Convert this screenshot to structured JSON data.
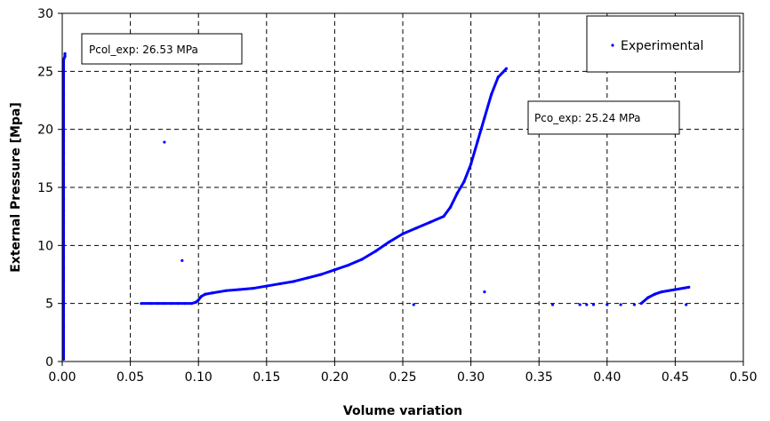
{
  "chart_data": {
    "type": "scatter",
    "xlabel": "Volume variation",
    "ylabel": "External Pressure [Mpa]",
    "xlim": [
      0,
      0.5
    ],
    "ylim": [
      0,
      30
    ],
    "xticks": [
      "0.00",
      "0.05",
      "0.10",
      "0.15",
      "0.20",
      "0.25",
      "0.30",
      "0.35",
      "0.40",
      "0.45",
      "0.50"
    ],
    "yticks": [
      "0",
      "5",
      "10",
      "15",
      "20",
      "25",
      "30"
    ],
    "grid": true,
    "legend": {
      "placement": "top-right",
      "entries": [
        "Experimental"
      ]
    },
    "annotations": [
      {
        "text": "Pcol_exp:  26.53 MPa",
        "x": 0.0,
        "y": 26.53
      },
      {
        "text": "Pco_exp:  25.24 MPa",
        "x": 0.326,
        "y": 25.24
      }
    ],
    "series": [
      {
        "name": "Experimental",
        "color": "#0000ff",
        "x": [
          0.001,
          0.001,
          0.001,
          0.001,
          0.001,
          0.001,
          0.001,
          0.001,
          0.001,
          0.001,
          0.001,
          0.001,
          0.001,
          0.001,
          0.001,
          0.001,
          0.001,
          0.001,
          0.001,
          0.001,
          0.001,
          0.001,
          0.001,
          0.001,
          0.001,
          0.001,
          0.001,
          0.002,
          0.002,
          0.001,
          0.058,
          0.065,
          0.07,
          0.075,
          0.08,
          0.085,
          0.09,
          0.095,
          0.098,
          0.1,
          0.102,
          0.105,
          0.11,
          0.12,
          0.13,
          0.14,
          0.15,
          0.16,
          0.17,
          0.18,
          0.19,
          0.2,
          0.21,
          0.22,
          0.23,
          0.24,
          0.25,
          0.26,
          0.27,
          0.28,
          0.285,
          0.29,
          0.295,
          0.3,
          0.305,
          0.31,
          0.315,
          0.32,
          0.325,
          0.326,
          0.075,
          0.088,
          0.258,
          0.31,
          0.36,
          0.38,
          0.385,
          0.39,
          0.4,
          0.41,
          0.42,
          0.425,
          0.43,
          0.435,
          0.44,
          0.45,
          0.46,
          0.458
        ],
        "y": [
          0.2,
          1,
          2,
          3,
          4,
          5,
          6,
          7,
          8,
          9,
          10,
          11,
          12,
          13,
          14,
          15,
          16,
          17,
          18,
          19,
          20,
          21,
          22,
          23,
          24,
          25,
          26,
          26.3,
          26.53,
          5,
          5,
          5,
          5,
          5,
          5,
          5,
          5,
          5,
          5.1,
          5.3,
          5.6,
          5.8,
          5.9,
          6.1,
          6.2,
          6.3,
          6.5,
          6.7,
          6.9,
          7.2,
          7.5,
          7.9,
          8.3,
          8.8,
          9.5,
          10.3,
          11,
          11.5,
          12,
          12.5,
          13.3,
          14.5,
          15.5,
          17,
          19,
          21,
          23,
          24.5,
          25.1,
          25.24,
          18.9,
          8.7,
          4.9,
          6,
          4.9,
          4.9,
          4.9,
          4.9,
          4.9,
          4.9,
          4.9,
          5,
          5.5,
          5.8,
          6,
          6.2,
          6.4,
          4.9
        ]
      }
    ]
  }
}
